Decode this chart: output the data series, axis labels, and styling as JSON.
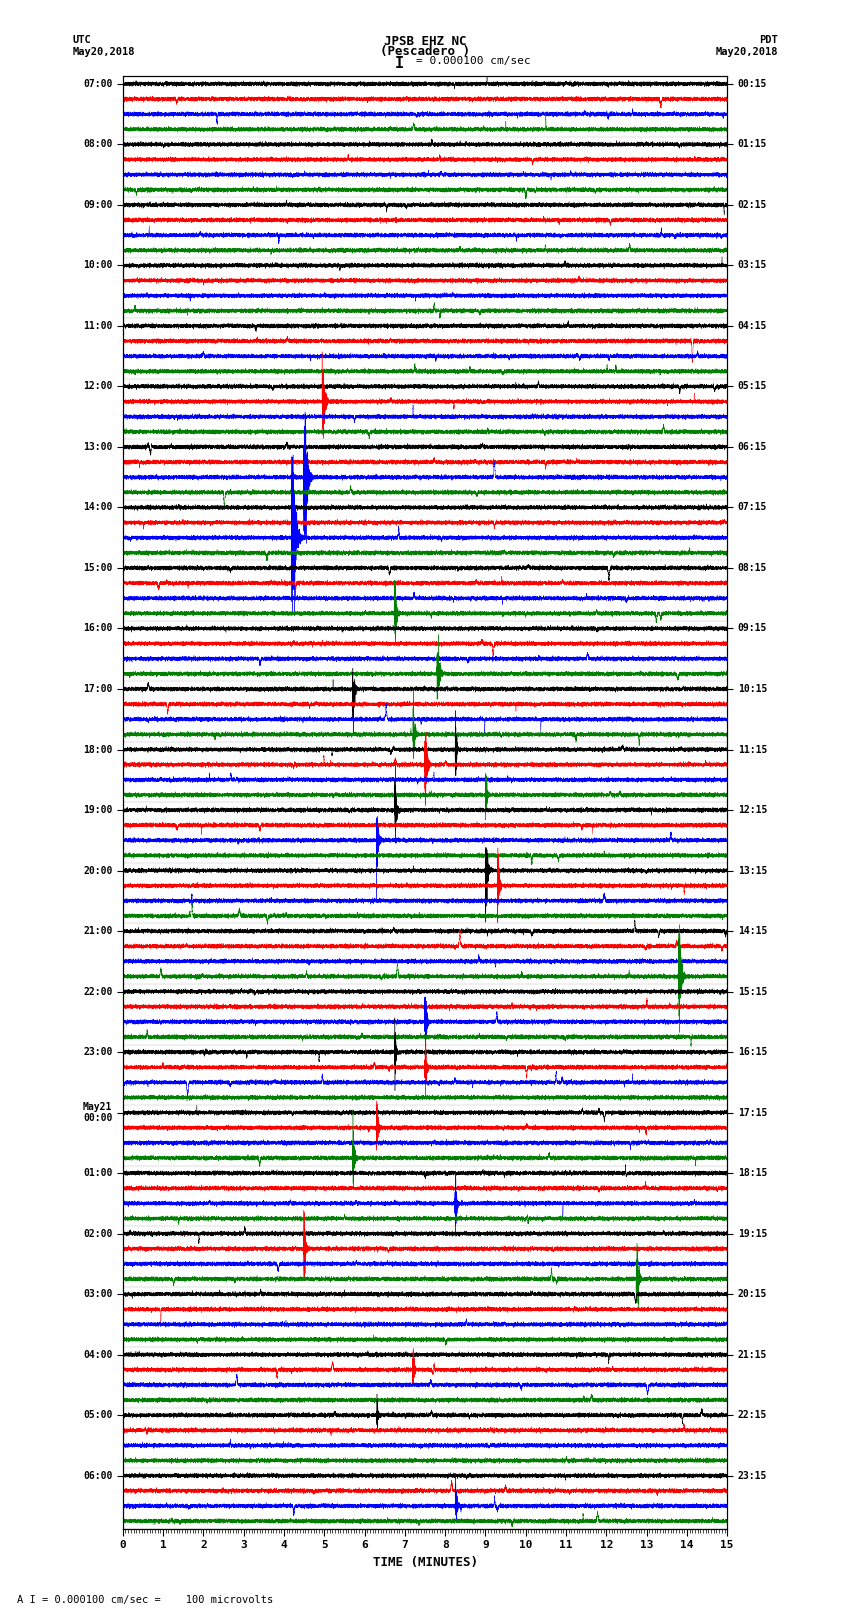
{
  "title_line1": "JPSB EHZ NC",
  "title_line2": "(Pescadero )",
  "scale_text": "= 0.000100 cm/sec",
  "scale_bar": "I",
  "left_header": "UTC\nMay20,2018",
  "right_header": "PDT\nMay20,2018",
  "bottom_label": "TIME (MINUTES)",
  "bottom_note": "A I = 0.000100 cm/sec =    100 microvolts",
  "left_times": [
    "07:00",
    "08:00",
    "09:00",
    "10:00",
    "11:00",
    "12:00",
    "13:00",
    "14:00",
    "15:00",
    "16:00",
    "17:00",
    "18:00",
    "19:00",
    "20:00",
    "21:00",
    "22:00",
    "23:00",
    "May21\n00:00",
    "01:00",
    "02:00",
    "03:00",
    "04:00",
    "05:00",
    "06:00"
  ],
  "right_times": [
    "00:15",
    "01:15",
    "02:15",
    "03:15",
    "04:15",
    "05:15",
    "06:15",
    "07:15",
    "08:15",
    "09:15",
    "10:15",
    "11:15",
    "12:15",
    "13:15",
    "14:15",
    "15:15",
    "16:15",
    "17:15",
    "18:15",
    "19:15",
    "20:15",
    "21:15",
    "22:15",
    "23:15"
  ],
  "colors": [
    "black",
    "red",
    "blue",
    "green"
  ],
  "n_rows": 24,
  "traces_per_row": 4,
  "n_points": 18000,
  "x_min": 0,
  "x_max": 15,
  "bg_color": "white",
  "amplitude_scale": 0.38,
  "seed": 12345
}
